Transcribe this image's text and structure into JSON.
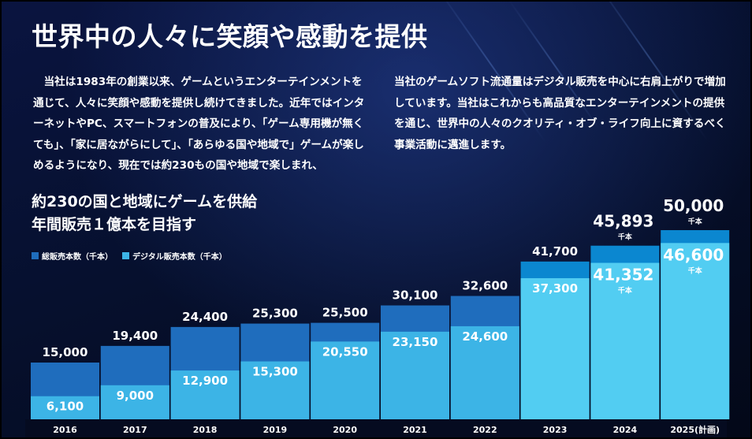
{
  "title": "世界中の人々に笑顔や感動を提供",
  "paragraph_left": "　当社は1983年の創業以来、ゲームというエンターテインメントを通じて、人々に笑顔や感動を提供し続けてきました。近年ではインターネットやPC、スマートフォンの普及により、「ゲーム専用機が無くても」、「家に居ながらにして」、「あらゆる国や地域で」ゲームが楽しめるようになり、現在では約230もの国や地域で楽しまれ、",
  "paragraph_right": "当社のゲームソフト流通量はデジタル販売を中心に右肩上がりで増加しています。当社はこれからも高品質なエンターテインメントの提供を通じ、世界中の人々のクオリティ・オブ・ライフ向上に資するべく事業活動に邁進します。",
  "headline_line1": "約230の国と地域にゲームを供給",
  "headline_line2": "年間販売１億本を目指す",
  "legend": {
    "total": "総販売本数（千本）",
    "digital": "デジタル販売本数（千本）"
  },
  "colors": {
    "total_bar": "#1f6dbd",
    "digital_bar": "#3cb4e6",
    "highlight_total": "#0b87d0",
    "highlight_digital": "#52cdf2"
  },
  "chart_data": {
    "type": "bar",
    "categories": [
      "2016",
      "2017",
      "2018",
      "2019",
      "2020",
      "2021",
      "2022",
      "2023",
      "2024",
      "2025(計画)"
    ],
    "series": [
      {
        "name": "総販売本数（千本）",
        "values": [
          15000,
          19400,
          24400,
          25300,
          25500,
          30100,
          32600,
          41700,
          45893,
          50000
        ]
      },
      {
        "name": "デジタル販売本数（千本）",
        "values": [
          6100,
          9000,
          12900,
          15300,
          20550,
          23150,
          24600,
          37300,
          41352,
          46600
        ]
      }
    ],
    "unit_label": "千本",
    "value_labels_total": [
      "15,000",
      "19,400",
      "24,400",
      "25,300",
      "25,500",
      "30,100",
      "32,600",
      "41,700",
      "45,893",
      "50,000"
    ],
    "value_labels_digital": [
      "6,100",
      "9,000",
      "12,900",
      "15,300",
      "20,550",
      "23,150",
      "24,600",
      "37,300",
      "41,352",
      "46,600"
    ],
    "stacked": "overlay",
    "grid": false
  }
}
